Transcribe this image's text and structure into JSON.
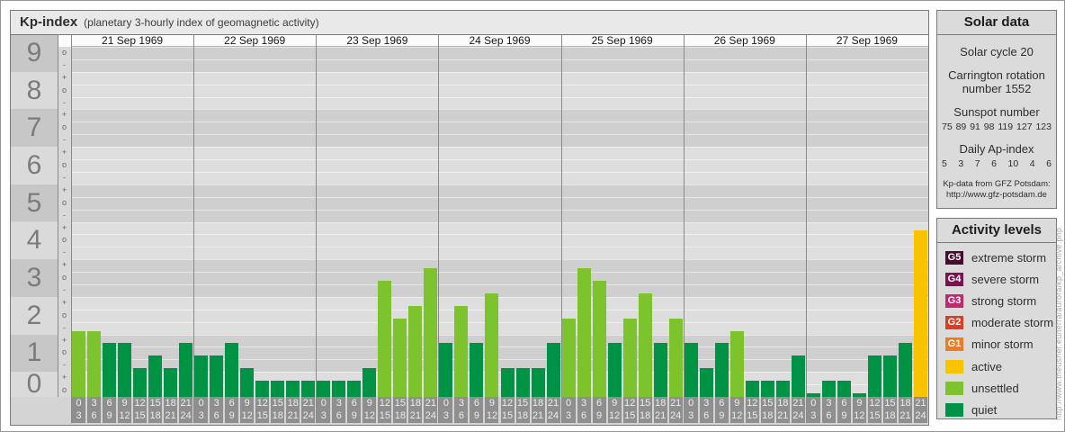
{
  "header": {
    "title": "Kp-index",
    "subtitle": "(planetary 3-hourly index of geomagnetic activity)"
  },
  "chart_data": {
    "type": "bar",
    "title": "Kp-index (planetary 3-hourly index of geomagnetic activity)",
    "ylabel": "Kp",
    "ylim": [
      "0o",
      "9o"
    ],
    "y_major_ticks": [
      "9",
      "8",
      "7",
      "6",
      "5",
      "4",
      "3",
      "2",
      "1",
      "0"
    ],
    "y_sub_ticks_top_to_bottom": [
      "+",
      "o",
      "-"
    ],
    "intervals": [
      [
        "0",
        "3"
      ],
      [
        "3",
        "6"
      ],
      [
        "6",
        "9"
      ],
      [
        "9",
        "12"
      ],
      [
        "12",
        "15"
      ],
      [
        "15",
        "18"
      ],
      [
        "18",
        "21"
      ],
      [
        "21",
        "24"
      ]
    ],
    "days": [
      {
        "date": "21 Sep 1969",
        "kp": [
          "2-",
          "2-",
          "1+",
          "1+",
          "1-",
          "1o",
          "1-",
          "1+"
        ]
      },
      {
        "date": "22 Sep 1969",
        "kp": [
          "1o",
          "1o",
          "1+",
          "1-",
          "0+",
          "0+",
          "0+",
          "0+"
        ]
      },
      {
        "date": "23 Sep 1969",
        "kp": [
          "0+",
          "0+",
          "0+",
          "1-",
          "3o",
          "2o",
          "2+",
          "3+"
        ]
      },
      {
        "date": "24 Sep 1969",
        "kp": [
          "1+",
          "2+",
          "1+",
          "3-",
          "1-",
          "1-",
          "1-",
          "1+"
        ]
      },
      {
        "date": "25 Sep 1969",
        "kp": [
          "2o",
          "3+",
          "3o",
          "1+",
          "2o",
          "3-",
          "1+",
          "2o"
        ]
      },
      {
        "date": "26 Sep 1969",
        "kp": [
          "1+",
          "1-",
          "1+",
          "2-",
          "0+",
          "0+",
          "0+",
          "1o"
        ]
      },
      {
        "date": "27 Sep 1969",
        "kp": [
          "0o",
          "0+",
          "0+",
          "0o",
          "1o",
          "1o",
          "1+",
          "4+"
        ]
      }
    ],
    "colors": {
      "quiet": "#009245",
      "unsettled": "#7cc32e",
      "active": "#f8c301",
      "storm": [
        "#ec7b23",
        "#dc3d23",
        "#c92470",
        "#7c1053",
        "#470b2f"
      ]
    },
    "legend_position": "right",
    "grid": true
  },
  "solar_panel": {
    "title": "Solar data",
    "cycle_line": "Solar cycle 20",
    "carrington_line1": "Carrington rotation",
    "carrington_line2": "number 1552",
    "sunspot_title": "Sunspot number",
    "sunspot_values": [
      "75",
      "89",
      "91",
      "98",
      "119",
      "127",
      "123"
    ],
    "ap_title": "Daily Ap-index",
    "ap_values": [
      "5",
      "3",
      "7",
      "6",
      "10",
      "4",
      "6"
    ],
    "credit_line1": "Kp-data from GFZ Potsdam:",
    "credit_line2": "http://www.gfz-potsdam.de"
  },
  "activity_panel": {
    "title": "Activity levels",
    "levels": [
      {
        "badge": "G5",
        "label": "extreme storm",
        "color": "#470b2f"
      },
      {
        "badge": "G4",
        "label": "severe storm",
        "color": "#7c1053"
      },
      {
        "badge": "G3",
        "label": "strong storm",
        "color": "#c92470"
      },
      {
        "badge": "G2",
        "label": "moderate storm",
        "color": "#dc3d23"
      },
      {
        "badge": "G1",
        "label": "minor storm",
        "color": "#ec7b23"
      },
      {
        "badge": "",
        "label": "active",
        "color": "#f8c301"
      },
      {
        "badge": "",
        "label": "unsettled",
        "color": "#7cc32e"
      },
      {
        "badge": "",
        "label": "quiet",
        "color": "#009245"
      }
    ]
  },
  "watermark": "http://www.theusner.eu/terra/aurora/kp_archive.php"
}
